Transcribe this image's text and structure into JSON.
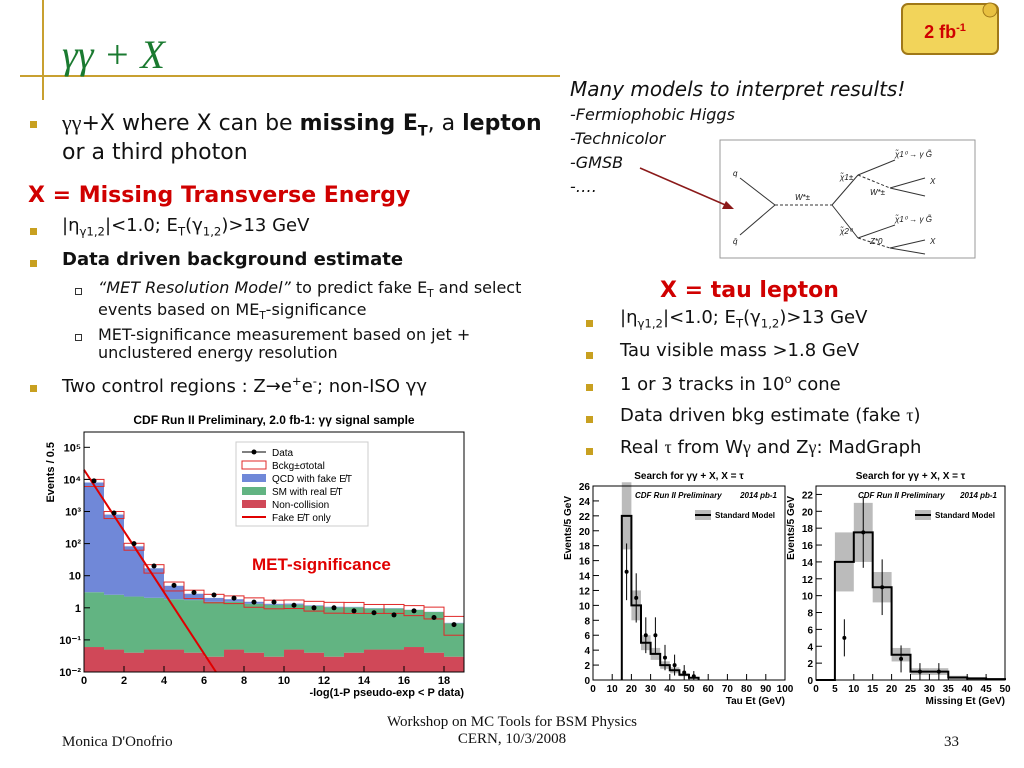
{
  "header": {
    "title": "γγ + X",
    "badge": "2 fb",
    "badge_sup": "-1"
  },
  "left": {
    "intro": [
      "γγ",
      "+X where X can be ",
      "missing E",
      "T",
      ", a ",
      "lepton",
      " or a third photon"
    ],
    "section": "X = Missing Transverse Energy",
    "cut": [
      "|η",
      "γ1,2",
      "|<1.0; E",
      "T",
      "(γ",
      "1,2",
      ")>13 GeV"
    ],
    "method": "Data driven background estimate",
    "sub1": [
      "“MET Resolution Model”",
      " to predict fake E",
      "T",
      " and select events based on ME",
      "T",
      "-significance"
    ],
    "sub2": "MET-significance measurement based on jet + unclustered energy resolution",
    "control": [
      "Two control regions : Z→e",
      "+",
      "e",
      "-",
      "; non-ISO γγ"
    ]
  },
  "right": {
    "heading": "Many models to interpret results!",
    "models": [
      "-Fermiophobic Higgs",
      "-Technicolor",
      "-GMSB",
      "-…."
    ],
    "section": "X = tau lepton",
    "cut": [
      "|η",
      "γ1,2",
      "|<1.0; E",
      "T",
      "(γ",
      "1,2",
      ")>13 GeV"
    ],
    "mass": "Tau visible mass >1.8 GeV",
    "tracks": [
      "1 or 3 tracks in 10",
      "o",
      " cone"
    ],
    "fake": [
      "Data driven bkg estimate (fake ",
      "τ",
      ")"
    ],
    "real": [
      "Real ",
      "τ",
      " from W",
      "γ",
      " and Z",
      "γ",
      ": MadGraph"
    ]
  },
  "diagram": {
    "labels": [
      "q",
      "q̄",
      "W*±",
      "χ̃1±",
      "χ̃2⁰",
      "W*±",
      "Z*0",
      "χ̃1⁰ → γ G̃",
      "X",
      "X",
      "χ̃1⁰ → γ G̃"
    ]
  },
  "footer": {
    "author": "Monica D'Onofrio",
    "event": [
      "Workshop on MC Tools for BSM Physics",
      "CERN, 10/3/2008"
    ],
    "page": "33"
  },
  "chart_data": [
    {
      "type": "stacked_histogram",
      "log_y": true,
      "title": "CDF Run II Preliminary, 2.0 fb-1: γγ signal sample",
      "y_label": "Events / 0.5",
      "x_label": "-log(1-P pseudo-exp < P data)",
      "annotation": "MET-significance",
      "bins": [
        0,
        1,
        2,
        3,
        4,
        5,
        6,
        7,
        8,
        9,
        10,
        11,
        12,
        13,
        14,
        15,
        16,
        17,
        18,
        19
      ],
      "series": [
        {
          "name": "Non-collision",
          "color": "#d04858",
          "values": [
            0.06,
            0.05,
            0.04,
            0.05,
            0.05,
            0.04,
            0.03,
            0.05,
            0.04,
            0.03,
            0.05,
            0.04,
            0.03,
            0.04,
            0.05,
            0.05,
            0.06,
            0.04,
            0.03
          ]
        },
        {
          "name": "SM with real E̸T",
          "color": "#62b482",
          "values": [
            3,
            2.5,
            2.2,
            2,
            1.8,
            1.7,
            1.5,
            1.5,
            1.3,
            1.2,
            1.2,
            1.1,
            1,
            1,
            0.9,
            0.9,
            0.8,
            0.7,
            0.3
          ]
        },
        {
          "name": "QCD with fake E̸T",
          "color": "#7088d8",
          "values": [
            8000,
            800,
            80,
            15,
            3,
            1,
            0.5,
            0.3,
            0.2,
            0.1,
            0.1,
            0.05,
            0.05,
            0.03,
            0.02,
            0.02,
            0.01,
            0.01,
            0.01
          ]
        }
      ],
      "band": {
        "name": "Bckg±σtotal",
        "color": "#e02828",
        "errors": [
          2000,
          200,
          20,
          5,
          1.5,
          0.8,
          0.6,
          0.5,
          0.5,
          0.4,
          0.4,
          0.4,
          0.4,
          0.4,
          0.3,
          0.3,
          0.3,
          0.3,
          0.2
        ]
      },
      "data": {
        "name": "Data",
        "values": [
          9000,
          900,
          100,
          20,
          5,
          3,
          2.5,
          2,
          1.5,
          1.5,
          1.2,
          1,
          1,
          0.8,
          0.7,
          0.6,
          0.8,
          0.5,
          0.3
        ]
      },
      "fake_line": {
        "name": "Fake E̸T only",
        "color": "#e00000",
        "x": [
          0,
          6.6
        ],
        "values": [
          20000,
          0.01
        ]
      },
      "xlim": [
        0,
        19
      ],
      "ylim": [
        0.01,
        300000
      ],
      "xticks": [
        0,
        2,
        4,
        6,
        8,
        10,
        12,
        14,
        16,
        18
      ],
      "yticks": [
        {
          "value": 0.01,
          "label": "10⁻²"
        },
        {
          "value": 0.1,
          "label": "10⁻¹"
        },
        1,
        10,
        {
          "value": 100,
          "label": "10²"
        },
        {
          "value": 1000,
          "label": "10³"
        },
        {
          "value": 10000,
          "label": "10⁴"
        },
        {
          "value": 100000,
          "label": "10⁵"
        }
      ]
    },
    {
      "type": "histogram",
      "title": "Search for γγ + X, X = τ",
      "subtitle": "CDF Run II Preliminary",
      "lumi": "2014 pb-1",
      "y_label": "Events/5 GeV",
      "x_label": "Tau Et (GeV)",
      "bins": [
        15,
        20,
        25,
        30,
        35,
        40,
        45,
        50,
        55
      ],
      "series": [
        {
          "name": "Standard Model",
          "color": "#000000",
          "values": [
            22,
            10,
            5,
            3.5,
            2,
            1.3,
            0.7,
            0.3
          ],
          "errors": [
            4.5,
            2,
            1,
            0.8,
            0.5,
            0.4,
            0.2,
            0.1
          ]
        }
      ],
      "data_points": {
        "x": [
          17.5,
          22.5,
          27.5,
          32.5,
          37.5,
          42.5,
          47.5,
          52.5
        ],
        "values": [
          14.5,
          11,
          6,
          6,
          3,
          2,
          1,
          0.5
        ],
        "errors": [
          3.8,
          3.3,
          2.4,
          2.4,
          1.7,
          1.4,
          1,
          0.7
        ]
      },
      "xlim": [
        0,
        100
      ],
      "ylim": [
        0,
        26
      ],
      "xticks": [
        0,
        10,
        20,
        30,
        40,
        50,
        60,
        70,
        80,
        90,
        100
      ],
      "yticks": [
        0,
        2,
        4,
        6,
        8,
        10,
        12,
        14,
        16,
        18,
        20,
        22,
        24,
        26
      ]
    },
    {
      "type": "histogram",
      "title": "Search for γγ + X, X = τ",
      "subtitle": "CDF Run II Preliminary",
      "lumi": "2014 pb-1",
      "y_label": "Events/5 GeV",
      "x_label": "Missing Et (GeV)",
      "bins": [
        0,
        5,
        10,
        15,
        20,
        25,
        30,
        35,
        40,
        45,
        50
      ],
      "series": [
        {
          "name": "Standard Model",
          "color": "#000000",
          "values": [
            0,
            14,
            17.5,
            11,
            3,
            1,
            1,
            0.3,
            0.2,
            0.1
          ],
          "errors": [
            0,
            3.5,
            3.5,
            1.8,
            0.8,
            0.4,
            0.4,
            0.2,
            0.1,
            0.1
          ]
        }
      ],
      "data_points": {
        "x": [
          7.5,
          12.5,
          17.5,
          22.5,
          27.5,
          32.5
        ],
        "values": [
          5,
          17.5,
          11,
          2.5,
          1,
          1
        ],
        "errors": [
          2.2,
          4.2,
          3.3,
          1.6,
          1,
          1
        ]
      },
      "xlim": [
        0,
        50
      ],
      "ylim": [
        0,
        23
      ],
      "xticks": [
        0,
        5,
        10,
        15,
        20,
        25,
        30,
        35,
        40,
        45,
        50
      ],
      "yticks": [
        0,
        2,
        4,
        6,
        8,
        10,
        12,
        14,
        16,
        18,
        20,
        22
      ]
    }
  ]
}
